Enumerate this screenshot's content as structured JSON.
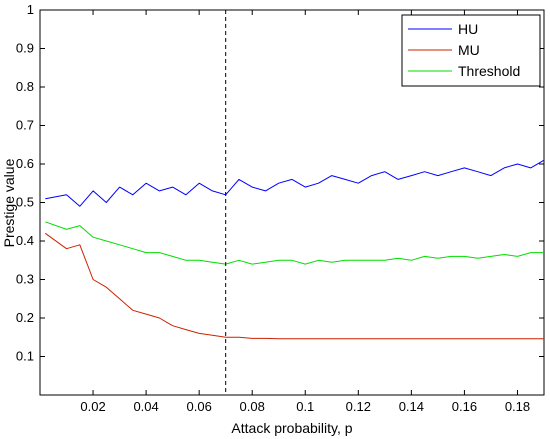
{
  "chart_data": {
    "type": "line",
    "xlabel": "Attack probability, p",
    "ylabel": "Prestige value",
    "xlim": [
      0.0,
      0.19
    ],
    "ylim": [
      0.0,
      1.0
    ],
    "x_ticks": [
      0.02,
      0.04,
      0.06,
      0.08,
      0.1,
      0.12,
      0.14,
      0.16,
      0.18
    ],
    "x_tick_labels": [
      "0.02",
      "0.04",
      "0.06",
      "0.08",
      "0.1",
      "0.12",
      "0.14",
      "0.16",
      "0.18"
    ],
    "y_ticks": [
      0.1,
      0.2,
      0.3,
      0.4,
      0.5,
      0.6,
      0.7,
      0.8,
      0.9,
      1.0
    ],
    "y_tick_labels": [
      "0.1",
      "0.2",
      "0.3",
      "0.4",
      "0.5",
      "0.6",
      "0.7",
      "0.8",
      "0.9",
      "1"
    ],
    "grid": false,
    "legend_position": "top-right",
    "vline_x": 0.07,
    "x": [
      0.002,
      0.01,
      0.015,
      0.02,
      0.025,
      0.03,
      0.035,
      0.04,
      0.045,
      0.05,
      0.055,
      0.06,
      0.065,
      0.07,
      0.075,
      0.08,
      0.085,
      0.09,
      0.095,
      0.1,
      0.105,
      0.11,
      0.115,
      0.12,
      0.125,
      0.13,
      0.135,
      0.14,
      0.145,
      0.15,
      0.155,
      0.16,
      0.165,
      0.17,
      0.175,
      0.18,
      0.185,
      0.19
    ],
    "series": [
      {
        "name": "HU",
        "color": "#0000ff",
        "values": [
          0.51,
          0.52,
          0.49,
          0.53,
          0.5,
          0.54,
          0.52,
          0.55,
          0.53,
          0.54,
          0.52,
          0.55,
          0.53,
          0.52,
          0.56,
          0.54,
          0.53,
          0.55,
          0.56,
          0.54,
          0.55,
          0.57,
          0.56,
          0.55,
          0.57,
          0.58,
          0.56,
          0.57,
          0.58,
          0.57,
          0.58,
          0.59,
          0.58,
          0.57,
          0.59,
          0.6,
          0.59,
          0.61
        ]
      },
      {
        "name": "MU",
        "color": "#cc2200",
        "values": [
          0.42,
          0.38,
          0.39,
          0.3,
          0.28,
          0.25,
          0.22,
          0.21,
          0.2,
          0.18,
          0.17,
          0.16,
          0.155,
          0.15,
          0.15,
          0.147,
          0.147,
          0.146,
          0.146,
          0.146,
          0.146,
          0.146,
          0.146,
          0.146,
          0.146,
          0.146,
          0.146,
          0.146,
          0.146,
          0.146,
          0.146,
          0.146,
          0.146,
          0.146,
          0.146,
          0.146,
          0.146,
          0.146
        ]
      },
      {
        "name": "Threshold",
        "color": "#00dd00",
        "values": [
          0.45,
          0.43,
          0.44,
          0.41,
          0.4,
          0.39,
          0.38,
          0.37,
          0.37,
          0.36,
          0.35,
          0.35,
          0.345,
          0.34,
          0.35,
          0.34,
          0.345,
          0.35,
          0.35,
          0.34,
          0.35,
          0.345,
          0.35,
          0.35,
          0.35,
          0.35,
          0.355,
          0.35,
          0.36,
          0.355,
          0.36,
          0.36,
          0.355,
          0.36,
          0.365,
          0.36,
          0.37,
          0.37
        ]
      }
    ]
  }
}
